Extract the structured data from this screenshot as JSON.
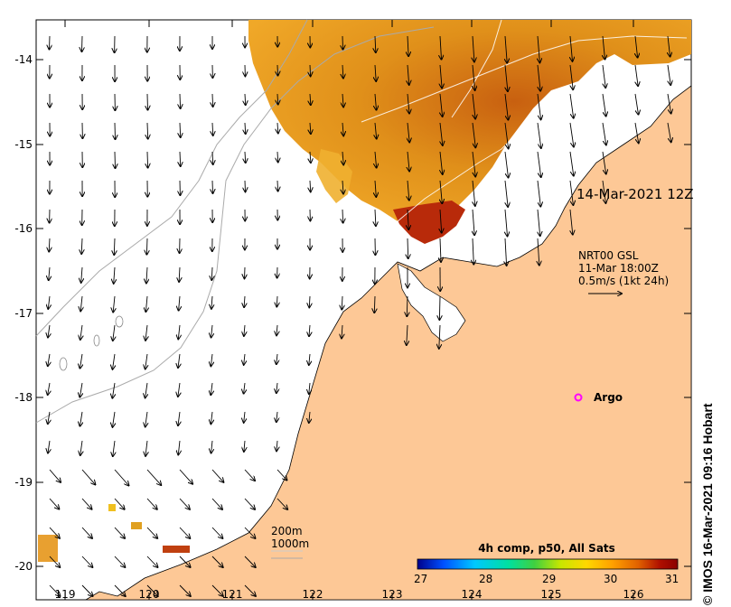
{
  "map": {
    "timestamp": "14-Mar-2021 12Z",
    "credit": "© IMOS 16-Mar-2021 09:16 Hobart",
    "latitude_labels": [
      "-14",
      "-15",
      "-16",
      "-17",
      "-18",
      "-19",
      "-20"
    ],
    "longitude_labels": [
      "119",
      "120",
      "121",
      "122",
      "123",
      "124",
      "125",
      "126"
    ],
    "current_legend": {
      "line1": "NRT00 GSL",
      "line2": "11-Mar 18:00Z",
      "line3": "0.5m/s (1kt 24h)"
    },
    "bathymetry": {
      "contour1": "200m",
      "contour2": "1000m"
    },
    "argo": {
      "label": "Argo",
      "color": "#ff00ff"
    },
    "colorbar": {
      "title": "4h comp, p50, All Sats",
      "ticks": [
        "27",
        "28",
        "29",
        "30",
        "31"
      ],
      "colors": [
        "#00008b",
        "#0050ff",
        "#00c8ff",
        "#00e0a0",
        "#40d040",
        "#c8e600",
        "#ffd700",
        "#ffa000",
        "#e06000",
        "#b01000",
        "#8b0000"
      ]
    },
    "colors": {
      "land": "#fdc896",
      "sst_warm": "#e08a14",
      "sst_hot": "#b02008",
      "sst_mid": "#f0a020",
      "contour": "#aaaaaa",
      "arrow": "#000000"
    }
  }
}
